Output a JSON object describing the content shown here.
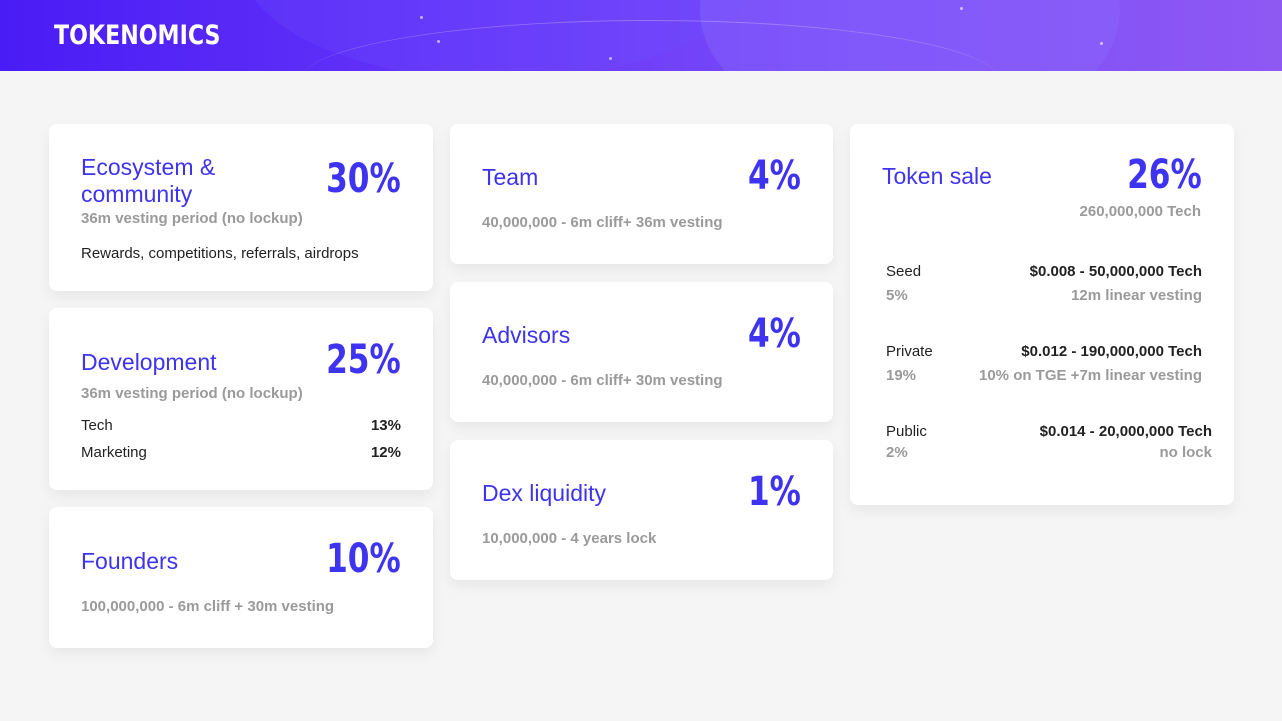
{
  "header": {
    "title": "TOKENOMICS"
  },
  "colors": {
    "accent": "#3d33f0",
    "banner_start": "#4a1cf5",
    "banner_end": "#8e58f3",
    "muted": "#9a9a9a"
  },
  "cards": {
    "ecosystem": {
      "title_line1": "Ecosystem &",
      "title_line2": "community",
      "percent": "30%",
      "subtitle": "36m vesting period (no lockup)",
      "note": "Rewards, competitions, referrals, airdrops"
    },
    "development": {
      "title": "Development",
      "percent": "25%",
      "subtitle": "36m vesting period (no lockup)",
      "items": [
        {
          "label": "Tech",
          "value": "13%"
        },
        {
          "label": "Marketing",
          "value": "12%"
        }
      ]
    },
    "founders": {
      "title": "Founders",
      "percent": "10%",
      "subtitle": "100,000,000 - 6m cliff + 30m vesting"
    },
    "team": {
      "title": "Team",
      "percent": "4%",
      "subtitle": "40,000,000 - 6m cliff+ 36m vesting"
    },
    "advisors": {
      "title": "Advisors",
      "percent": "4%",
      "subtitle": "40,000,000 - 6m cliff+ 30m vesting"
    },
    "dex": {
      "title": "Dex liquidity",
      "percent": "1%",
      "subtitle": "10,000,000 - 4 years lock"
    },
    "token_sale": {
      "title": "Token sale",
      "percent": "26%",
      "total": "260,000,000 Tech",
      "rounds": [
        {
          "name": "Seed",
          "price": "$0.008 - 50,000,000 Tech",
          "percent": "5%",
          "detail": "12m linear vesting"
        },
        {
          "name": "Private",
          "price": "$0.012 - 190,000,000 Tech",
          "percent": "19%",
          "detail": "10% on TGE +7m linear vesting"
        },
        {
          "name": "Public",
          "price": "$0.014 - 20,000,000 Tech",
          "percent": "2%",
          "detail": "no lock"
        }
      ]
    }
  }
}
